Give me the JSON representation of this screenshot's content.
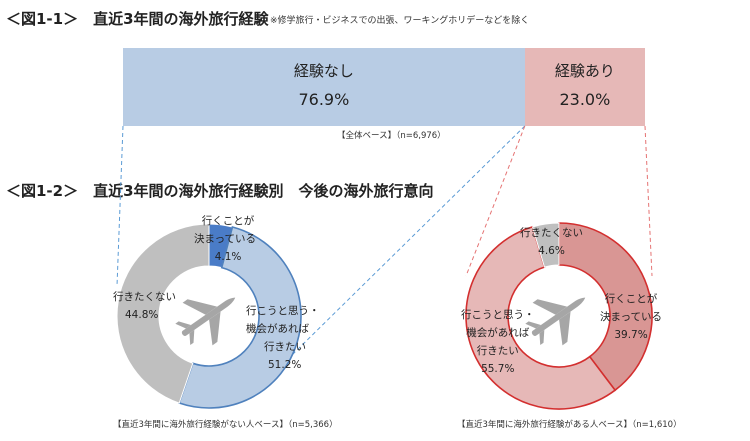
{
  "fig1": {
    "title": "＜図1-1＞　直近3年間の海外旅行経験",
    "note": "※修学旅行・ビジネスでの出張、ワーキングホリデーなどを除く",
    "base": "【全体ベース】（n=6,976）"
  },
  "fig2": {
    "title": "＜図1-2＞　直近3年間の海外旅行経験別　今後の海外旅行意向",
    "left_base": "【直近3年間に海外旅行経験がない人ベース】（n=5,366）",
    "right_base": "【直近3年間に海外旅行経験がある人ベース】（n=1,610）"
  },
  "colors": {
    "bar_none": "#b8cce4",
    "bar_yes": "#e6b8b7",
    "blue_decided": "#4a7cc7",
    "blue_want": "#b8cce4",
    "gray": "#bfbfbf",
    "red_decided": "#d99694",
    "red_want": "#e6b8b7",
    "red_outline": "#d32f2f",
    "blue_outline": "#4f81bd",
    "plane": "#a6a6a6"
  },
  "icons": {
    "center": "airplane-icon"
  },
  "chart_data": [
    {
      "type": "bar",
      "orientation": "horizontal-stacked-100",
      "series": [
        {
          "name": "経験なし",
          "value": 76.9,
          "label": "76.9%"
        },
        {
          "name": "経験あり",
          "value": 23.0,
          "label": "23.0%"
        }
      ]
    },
    {
      "type": "pie",
      "variant": "donut",
      "slices": [
        {
          "label": "行くことが決まっている",
          "lines": [
            "行くことが",
            "決まっている"
          ],
          "value": 4.1,
          "value_label": "4.1%"
        },
        {
          "label": "行こうと思う・機会があれば行きたい",
          "lines": [
            "行こうと思う・",
            "機会があれば",
            "行きたい"
          ],
          "value": 51.2,
          "value_label": "51.2%"
        },
        {
          "label": "行きたくない",
          "lines": [
            "行きたくない"
          ],
          "value": 44.8,
          "value_label": "44.8%"
        }
      ]
    },
    {
      "type": "pie",
      "variant": "donut",
      "slices": [
        {
          "label": "行くことが決まっている",
          "lines": [
            "行くことが",
            "決まっている"
          ],
          "value": 39.7,
          "value_label": "39.7%"
        },
        {
          "label": "行こうと思う・機会があれば行きたい",
          "lines": [
            "行こうと思う・",
            "機会があれば",
            "行きたい"
          ],
          "value": 55.7,
          "value_label": "55.7%"
        },
        {
          "label": "行きたくない",
          "lines": [
            "行きたくない"
          ],
          "value": 4.6,
          "value_label": "4.6%"
        }
      ]
    }
  ]
}
